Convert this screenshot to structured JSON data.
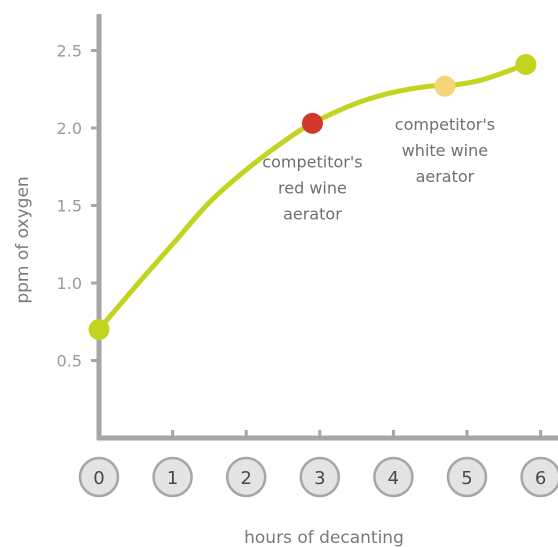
{
  "chart_data": {
    "type": "line",
    "title": "",
    "xlabel": "hours of decanting",
    "ylabel": "ppm of oxygen",
    "x_ticks": [
      "0",
      "1",
      "2",
      "3",
      "4",
      "5",
      "6"
    ],
    "y_ticks": [
      "0.5",
      "1.0",
      "1.5",
      "2.0",
      "2.5"
    ],
    "xlim": [
      0,
      6.3
    ],
    "ylim": [
      0,
      2.6
    ],
    "grid": false,
    "line_color": "#c2d41f",
    "series": [
      {
        "x": [
          0,
          0.5,
          1,
          1.5,
          2,
          2.5,
          2.9,
          3.5,
          4,
          4.5,
          4.7,
          5.2,
          5.8
        ],
        "y": [
          0.7,
          0.98,
          1.25,
          1.52,
          1.73,
          1.91,
          2.03,
          2.16,
          2.23,
          2.27,
          2.27,
          2.31,
          2.41
        ]
      }
    ],
    "highlights": [
      {
        "x": 0,
        "y": 0.7,
        "color": "#c2d41f"
      },
      {
        "x": 2.9,
        "y": 2.03,
        "color": "#d0382a"
      },
      {
        "x": 4.7,
        "y": 2.27,
        "color": "#f3d57a"
      },
      {
        "x": 5.8,
        "y": 2.41,
        "color": "#c2d41f"
      }
    ],
    "annotations": [
      {
        "lines": [
          "competitor's",
          "red wine",
          "aerator"
        ],
        "x": 2.9,
        "y": 2.03,
        "placement": "below"
      },
      {
        "lines": [
          "competitor's",
          "white wine",
          "aerator"
        ],
        "x": 4.7,
        "y": 2.27,
        "placement": "below"
      }
    ]
  }
}
